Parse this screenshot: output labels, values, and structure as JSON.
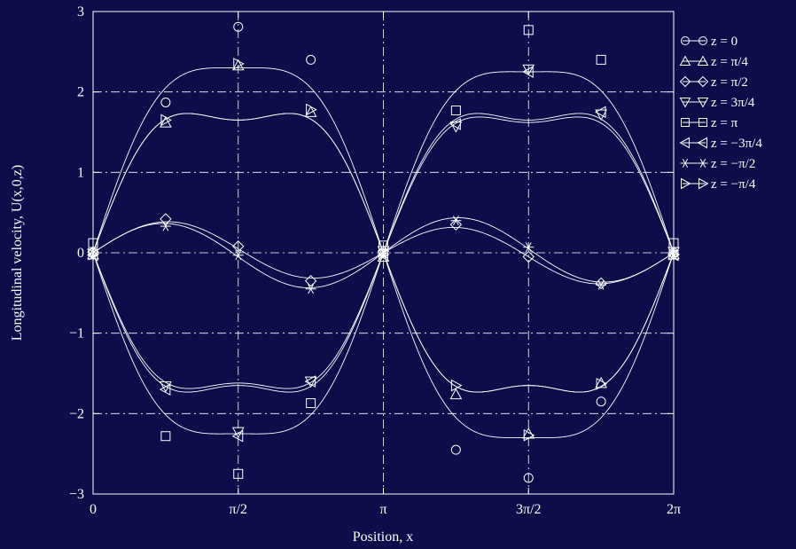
{
  "chart_data": {
    "type": "line",
    "xlabel": "Position,  x",
    "ylabel": "Longitudinal velocity,  U(x,0,z)",
    "xlim": [
      0,
      6.283185307
    ],
    "ylim": [
      -3,
      3
    ],
    "x_ticks": [
      {
        "value": 0,
        "label": "0"
      },
      {
        "value": 1.570796327,
        "label": "π/2"
      },
      {
        "value": 3.141592654,
        "label": "π"
      },
      {
        "value": 4.71238898,
        "label": "3π/2"
      },
      {
        "value": 6.283185307,
        "label": "2π"
      }
    ],
    "y_ticks": [
      {
        "value": 3,
        "label": "3"
      },
      {
        "value": 2,
        "label": "2"
      },
      {
        "value": 1,
        "label": "1"
      },
      {
        "value": 0,
        "label": "0"
      },
      {
        "value": -1,
        "label": "−1"
      },
      {
        "value": -2,
        "label": "−2"
      },
      {
        "value": -3,
        "label": "−3"
      }
    ],
    "grid": true,
    "legend_position": "outside-right",
    "line_color": "#ffffff",
    "background_color": "#0d0d4a",
    "marker_x": [
      0,
      0.785398163,
      1.570796327,
      2.35619449,
      3.141592654,
      3.926990817,
      4.71238898,
      5.497787144,
      6.283185307
    ],
    "series": [
      {
        "name": "z = 0",
        "marker": "circle",
        "values": [
          0,
          1.87,
          2.81,
          2.4,
          0,
          -2.45,
          -2.8,
          -1.85,
          0
        ],
        "curve": {
          "a1": 2.6,
          "a3": 0.3
        }
      },
      {
        "name": "z = π/4",
        "marker": "triangle-up",
        "values": [
          -0.02,
          1.62,
          2.33,
          1.75,
          -0.05,
          -1.76,
          -2.25,
          -1.62,
          -0.02
        ],
        "curve": {
          "a1": 2.0,
          "a3": 0.35
        }
      },
      {
        "name": "z = π/2",
        "marker": "diamond",
        "values": [
          0.01,
          0.42,
          0.08,
          -0.35,
          0.02,
          0.35,
          -0.05,
          -0.38,
          -0.02
        ],
        "curve": {
          "a1": 0.05,
          "a2": 0.35
        }
      },
      {
        "name": "z = 3π/4",
        "marker": "triangle-down",
        "values": [
          -0.01,
          -1.66,
          -2.23,
          -1.6,
          0.02,
          1.57,
          2.28,
          1.72,
          0.01
        ],
        "curve": {
          "a1": -1.95,
          "a3": -0.33
        }
      },
      {
        "name": "z = π",
        "marker": "square",
        "values": [
          0.12,
          -2.28,
          -2.75,
          -1.87,
          0.09,
          1.77,
          2.77,
          2.4,
          0.12
        ],
        "curve": {
          "a1": -2.55,
          "a3": -0.3
        }
      },
      {
        "name": "z = −3π/4",
        "marker": "triangle-left",
        "values": [
          -0.03,
          -1.7,
          -2.28,
          -1.6,
          -0.03,
          1.6,
          2.25,
          1.75,
          -0.03
        ],
        "curve": {
          "a1": -2.0,
          "a3": -0.35
        }
      },
      {
        "name": "z = −π/2",
        "marker": "asterisk",
        "values": [
          -0.02,
          0.33,
          -0.03,
          -0.45,
          -0.01,
          0.4,
          0.07,
          -0.4,
          -0.02
        ],
        "curve": {
          "a1": -0.05,
          "a2": 0.4
        }
      },
      {
        "name": "z = −π/4",
        "marker": "triangle-right",
        "values": [
          -0.02,
          1.65,
          2.35,
          1.78,
          -0.02,
          -1.65,
          -2.27,
          -1.63,
          -0.02
        ],
        "curve": {
          "a1": 2.0,
          "a3": 0.35
        }
      }
    ]
  }
}
